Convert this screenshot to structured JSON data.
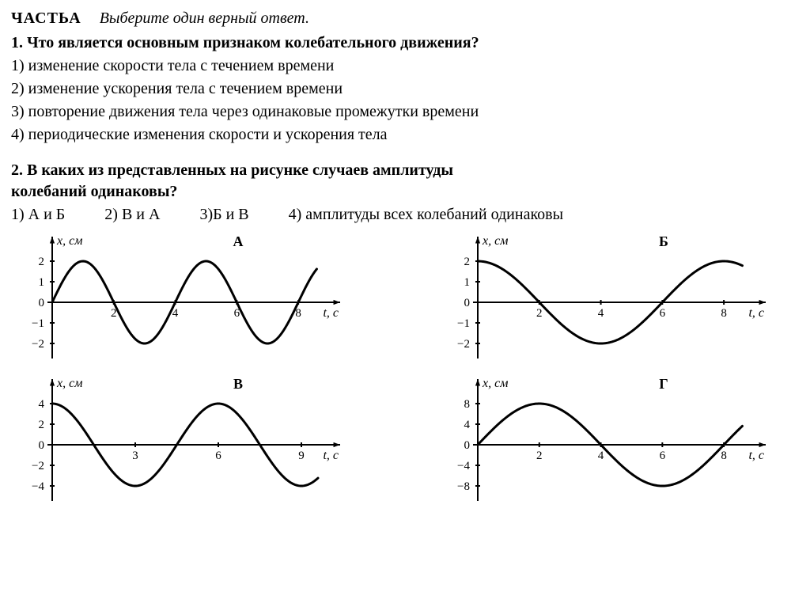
{
  "header": {
    "part": "ЧАСТЬА",
    "instruction": "Выберите один верный ответ."
  },
  "q1": {
    "num": "1.",
    "text": "Что является основным признаком колебательного движения?",
    "options": [
      "1) изменение скорости тела с течением времени",
      "2) изменение ускорения тела с течением времени",
      "3) повторение движения тела через одинаковые промежутки времени",
      "4) периодические изменения скорости и ускорения тела"
    ]
  },
  "q2": {
    "num": "2.",
    "line1": "В каких из представленных на рисунке случаев амплитуды",
    "line2": "колебаний одинаковы?",
    "options": [
      "1) А и Б",
      "2) В и А",
      "3)Б и В",
      "4) амплитуды всех колебаний одинаковы"
    ]
  },
  "charts": {
    "common": {
      "stroke_color": "#000000",
      "bg_color": "#ffffff",
      "axis_width": 2,
      "curve_width": 3,
      "tick_len": 6,
      "font_family": "Times New Roman",
      "label_fontsize": 16,
      "tick_fontsize": 15,
      "title_fontsize": 18,
      "y_label": "x, см",
      "x_label": "t, с"
    },
    "A": {
      "title": "А",
      "amplitude": 2,
      "period": 4,
      "phase": 0,
      "func": "sin",
      "x_ticks": [
        2,
        4,
        6,
        8
      ],
      "y_ticks": [
        -2,
        -1,
        0,
        1,
        2
      ],
      "y_labels_left": [
        "2",
        "1",
        "0",
        "−1",
        "−2"
      ],
      "xlim": [
        0,
        9
      ],
      "ylim": [
        -2.5,
        2.5
      ]
    },
    "B": {
      "title": "Б",
      "amplitude": 2,
      "period": 8,
      "phase": 0,
      "func": "cos",
      "x_ticks": [
        2,
        4,
        6,
        8
      ],
      "y_ticks": [
        -2,
        -1,
        0,
        1,
        2
      ],
      "y_labels_left": [
        "2",
        "1",
        "0",
        "−1",
        "−2"
      ],
      "xlim": [
        0,
        9
      ],
      "ylim": [
        -2.5,
        2.5
      ]
    },
    "V": {
      "title": "В",
      "amplitude": 4,
      "period": 6,
      "phase": 0,
      "func": "cos",
      "x_ticks": [
        3,
        6,
        9
      ],
      "y_ticks": [
        -4,
        -2,
        0,
        2,
        4
      ],
      "y_labels_left": [
        "4",
        "2",
        "0",
        "−2",
        "−4"
      ],
      "xlim": [
        0,
        10
      ],
      "ylim": [
        -5,
        5
      ]
    },
    "G": {
      "title": "Г",
      "amplitude": 8,
      "period": 8,
      "phase": 0,
      "func": "sin",
      "x_ticks": [
        2,
        4,
        6,
        8
      ],
      "y_ticks": [
        -8,
        -4,
        0,
        4,
        8
      ],
      "y_labels_left": [
        "8",
        "4",
        "0",
        "−4",
        "−8"
      ],
      "xlim": [
        0,
        9
      ],
      "ylim": [
        -10,
        10
      ]
    }
  }
}
